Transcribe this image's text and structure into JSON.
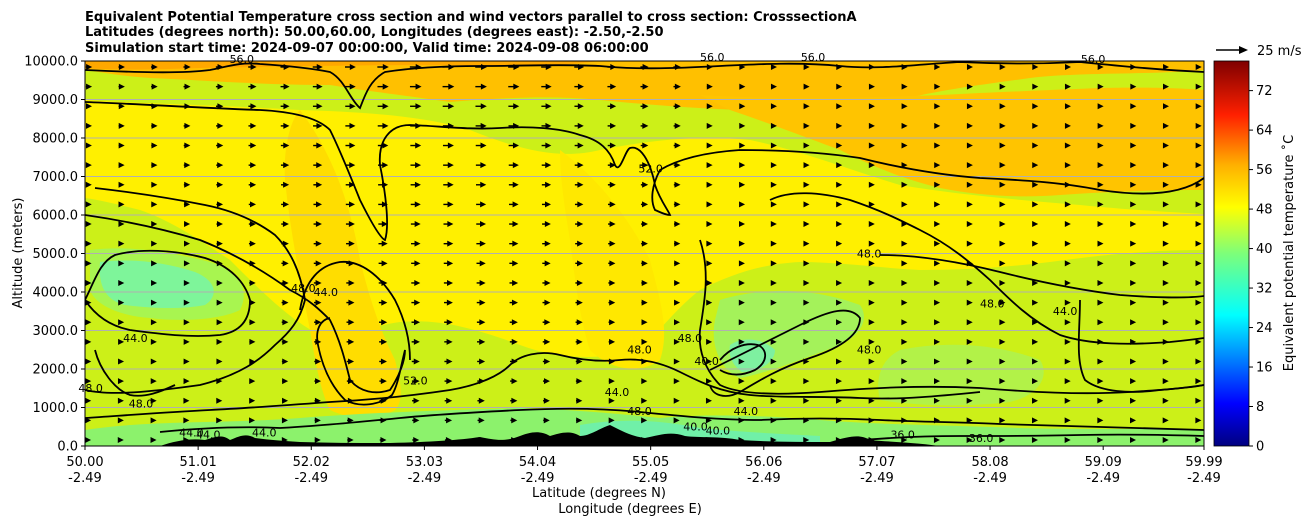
{
  "chart_data": {
    "type": "heatmap",
    "title_lines": [
      "Equivalent Potential Temperature cross section and wind vectors parallel to cross section: CrosssectionA",
      "Latitudes (degrees north): 50.00,60.00, Longitudes (degrees east): -2.50,-2.50",
      "Simulation start time: 2024-09-07 00:00:00, Valid time: 2024-09-08 06:00:00"
    ],
    "ylabel": "Altitude (meters)",
    "xlabel_line1": "Latitude (degrees N)",
    "xlabel_line2": "Longitude (degrees E)",
    "ylim": [
      0,
      10000
    ],
    "yticks": [
      "0.0",
      "1000.0",
      "2000.0",
      "3000.0",
      "4000.0",
      "5000.0",
      "6000.0",
      "7000.0",
      "8000.0",
      "9000.0",
      "10000.0"
    ],
    "xticks_lat": [
      "50.00",
      "51.01",
      "52.02",
      "53.03",
      "54.04",
      "55.05",
      "56.06",
      "57.07",
      "58.08",
      "59.09",
      "59.99"
    ],
    "xticks_lon": [
      "-2.49",
      "-2.49",
      "-2.49",
      "-2.49",
      "-2.49",
      "-2.49",
      "-2.49",
      "-2.49",
      "-2.49",
      "-2.49",
      "-2.49"
    ],
    "grid": "horizontal",
    "colorbar": {
      "label": "Equivalent potential temperature ˚C",
      "ticks": [
        "0",
        "8",
        "16",
        "24",
        "32",
        "40",
        "48",
        "56",
        "64",
        "72"
      ],
      "range": [
        0,
        78
      ],
      "colormap": "jet"
    },
    "quiver_key": "25 m/s",
    "contour_labels": [
      {
        "text": "56.0",
        "lat": 51.4,
        "alt": 9950
      },
      {
        "text": "56.0",
        "lat": 55.6,
        "alt": 10000
      },
      {
        "text": "56.0",
        "lat": 56.5,
        "alt": 10000
      },
      {
        "text": "56.0",
        "lat": 59.0,
        "alt": 9950
      },
      {
        "text": "52.0",
        "lat": 55.05,
        "alt": 7100
      },
      {
        "text": "48.0",
        "lat": 57.0,
        "alt": 4900
      },
      {
        "text": "44.0",
        "lat": 52.15,
        "alt": 3900
      },
      {
        "text": "48.0",
        "lat": 51.95,
        "alt": 4000
      },
      {
        "text": "48.0",
        "lat": 58.1,
        "alt": 3600
      },
      {
        "text": "44.0",
        "lat": 58.75,
        "alt": 3400
      },
      {
        "text": "44.0",
        "lat": 50.45,
        "alt": 2700
      },
      {
        "text": "48.0",
        "lat": 55.4,
        "alt": 2700
      },
      {
        "text": "48.0",
        "lat": 54.95,
        "alt": 2400
      },
      {
        "text": "48.0",
        "lat": 57.0,
        "alt": 2400
      },
      {
        "text": "40.0",
        "lat": 55.55,
        "alt": 2100
      },
      {
        "text": "52.0",
        "lat": 52.95,
        "alt": 1600
      },
      {
        "text": "48.0",
        "lat": 50.05,
        "alt": 1400
      },
      {
        "text": "48.0",
        "lat": 50.5,
        "alt": 1000
      },
      {
        "text": "44.0",
        "lat": 54.75,
        "alt": 1300
      },
      {
        "text": "48.0",
        "lat": 54.95,
        "alt": 800
      },
      {
        "text": "44.0",
        "lat": 55.9,
        "alt": 800
      },
      {
        "text": "40.0",
        "lat": 55.45,
        "alt": 400
      },
      {
        "text": "40.0",
        "lat": 55.65,
        "alt": 300
      },
      {
        "text": "44.0",
        "lat": 50.95,
        "alt": 250
      },
      {
        "text": "44.0",
        "lat": 51.1,
        "alt": 200
      },
      {
        "text": "44.0",
        "lat": 51.6,
        "alt": 250
      },
      {
        "text": "36.0",
        "lat": 57.3,
        "alt": 200
      },
      {
        "text": "36.0",
        "lat": 58.0,
        "alt": 100
      }
    ],
    "colors": {
      "background_field": "#ccf018",
      "upper_orange": "#ffb800",
      "mid_yellow": "#fff000",
      "lower_green": "#8cff6a",
      "terrain": "#000000"
    }
  }
}
